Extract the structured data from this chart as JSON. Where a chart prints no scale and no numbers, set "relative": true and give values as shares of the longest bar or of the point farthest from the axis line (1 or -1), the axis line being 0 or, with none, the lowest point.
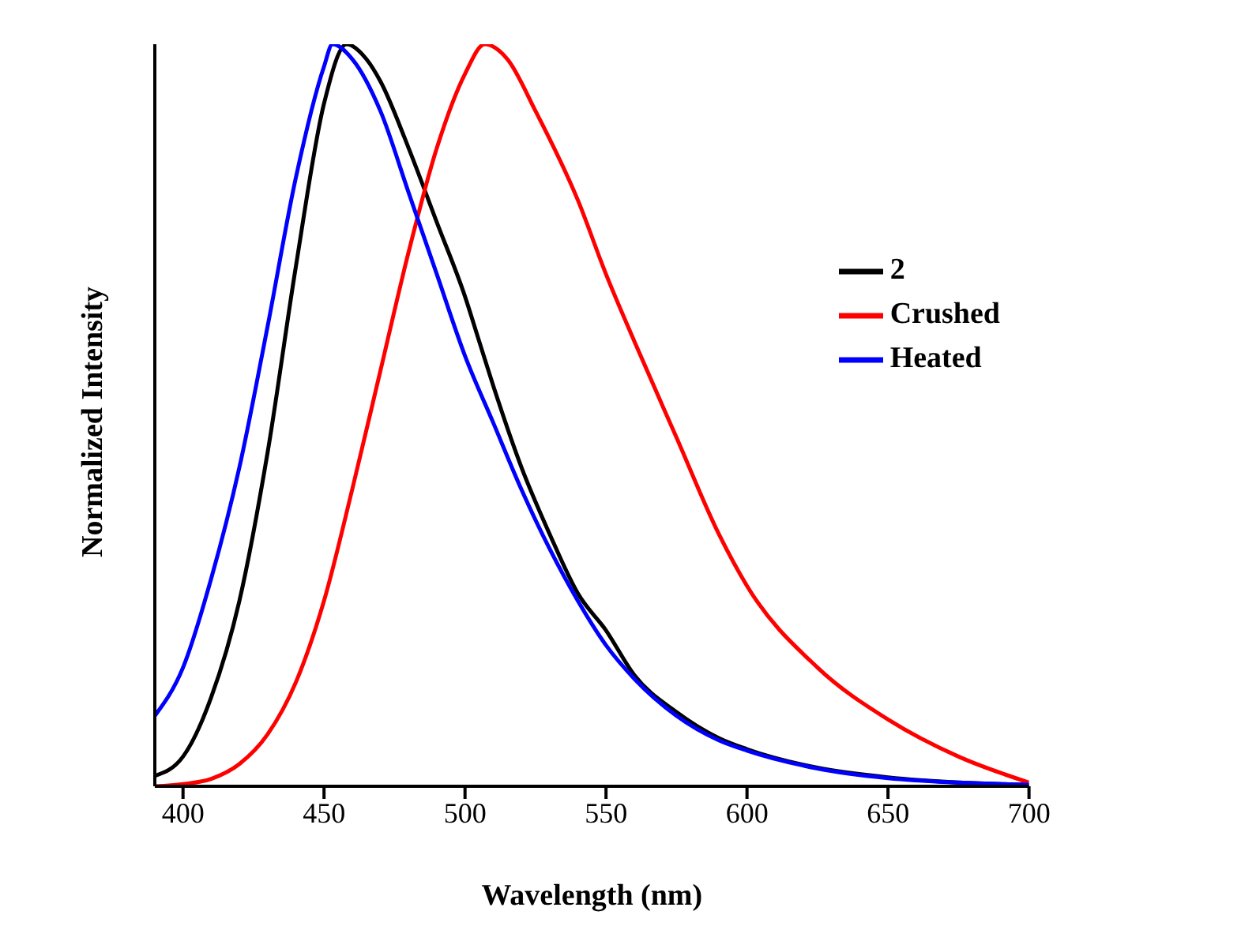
{
  "chart_data": {
    "type": "line",
    "xlabel": "Wavelength (nm)",
    "ylabel": "Normalized Intensity",
    "relative": true,
    "xlim": [
      390,
      700
    ],
    "xticks": [
      400,
      450,
      500,
      550,
      600,
      650,
      700
    ],
    "grid": false,
    "legend": "right",
    "marker": "none",
    "line_style": "solid",
    "series": [
      {
        "name": "2",
        "color": "#000000",
        "x": [
          390,
          400,
          410,
          420,
          430,
          440,
          450,
          458,
          465,
          470,
          480,
          490,
          500,
          505,
          510,
          520,
          530,
          540,
          550,
          560,
          575,
          590,
          600,
          625,
          650,
          675,
          700
        ],
        "values": [
          0.014,
          0.04,
          0.12,
          0.25,
          0.45,
          0.7,
          0.92,
          1.0,
          0.98,
          0.95,
          0.86,
          0.76,
          0.66,
          0.6,
          0.54,
          0.43,
          0.34,
          0.26,
          0.21,
          0.15,
          0.1,
          0.065,
          0.05,
          0.025,
          0.012,
          0.005,
          0.002
        ]
      },
      {
        "name": "Crushed",
        "color": "#ff0000",
        "x": [
          390,
          400,
          410,
          420,
          430,
          440,
          450,
          460,
          470,
          480,
          490,
          500,
          507,
          515,
          525,
          540,
          550,
          560,
          575,
          590,
          600,
          625,
          650,
          675,
          700
        ],
        "values": [
          0,
          0.003,
          0.01,
          0.03,
          0.07,
          0.14,
          0.25,
          0.4,
          0.56,
          0.72,
          0.86,
          0.96,
          1.0,
          0.98,
          0.91,
          0.79,
          0.69,
          0.6,
          0.47,
          0.34,
          0.27,
          0.16,
          0.09,
          0.04,
          0.005
        ]
      },
      {
        "name": "Heated",
        "color": "#0000ff",
        "x": [
          390,
          400,
          410,
          420,
          430,
          440,
          450,
          453,
          460,
          470,
          480,
          490,
          500,
          510,
          520,
          530,
          540,
          550,
          560,
          575,
          590,
          600,
          625,
          650,
          675,
          700
        ],
        "values": [
          0.095,
          0.16,
          0.28,
          0.43,
          0.62,
          0.82,
          0.97,
          1.0,
          0.98,
          0.91,
          0.8,
          0.69,
          0.58,
          0.49,
          0.4,
          0.32,
          0.25,
          0.19,
          0.145,
          0.095,
          0.062,
          0.048,
          0.024,
          0.011,
          0.005,
          0.002
        ]
      }
    ]
  }
}
